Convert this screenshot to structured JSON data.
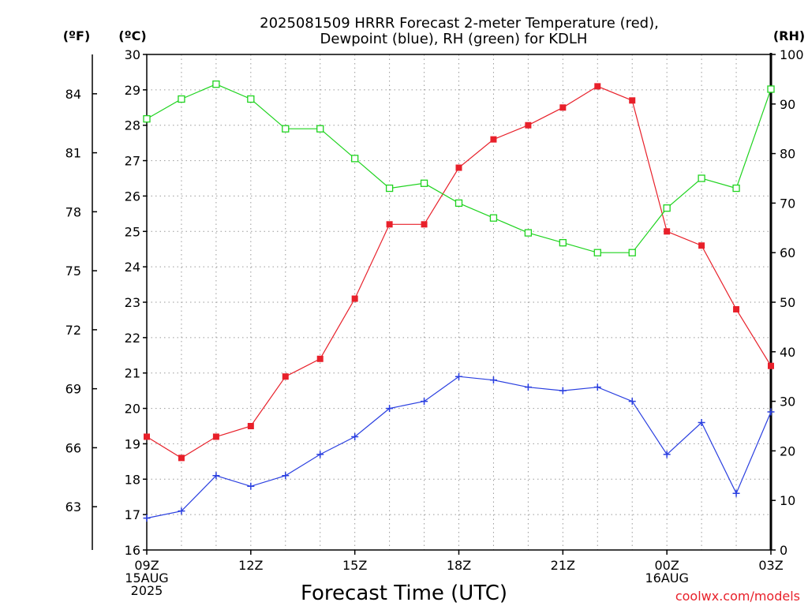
{
  "chart_data": {
    "type": "line",
    "title_lines": [
      "2025081509 HRRR Forecast 2-meter Temperature (red),",
      "Dewpoint (blue), RH (green) for KDLH"
    ],
    "xlabel": "Forecast Time (UTC)",
    "x_hours": [
      0,
      1,
      2,
      3,
      4,
      5,
      6,
      7,
      8,
      9,
      10,
      11,
      12,
      13,
      14,
      15,
      16,
      17,
      18
    ],
    "x_ticks": [
      {
        "hour": 0,
        "lines": [
          "09Z",
          "15AUG",
          "2025"
        ]
      },
      {
        "hour": 3,
        "lines": [
          "12Z"
        ]
      },
      {
        "hour": 6,
        "lines": [
          "15Z"
        ]
      },
      {
        "hour": 9,
        "lines": [
          "18Z"
        ]
      },
      {
        "hour": 12,
        "lines": [
          "21Z"
        ]
      },
      {
        "hour": 15,
        "lines": [
          "00Z",
          "16AUG"
        ]
      },
      {
        "hour": 18,
        "lines": [
          "03Z"
        ]
      }
    ],
    "x_range": [
      0,
      18
    ],
    "left_axis_f": {
      "label": "(ºF)",
      "ticks": [
        63,
        66,
        69,
        72,
        75,
        78,
        81,
        84
      ]
    },
    "left_axis_c": {
      "label": "(ºC)",
      "range": [
        16,
        30
      ],
      "ticks": [
        16,
        17,
        18,
        19,
        20,
        21,
        22,
        23,
        24,
        25,
        26,
        27,
        28,
        29,
        30
      ]
    },
    "right_axis": {
      "label": "(RH)",
      "range": [
        0,
        100
      ],
      "ticks": [
        0,
        10,
        20,
        30,
        40,
        50,
        60,
        70,
        80,
        90,
        100
      ]
    },
    "grid": true,
    "series": [
      {
        "key": "temperature",
        "axis": "c",
        "color": "#e8202a",
        "marker": "filled-square",
        "values": [
          19.2,
          18.6,
          19.2,
          19.5,
          20.9,
          21.4,
          23.1,
          25.2,
          25.2,
          26.8,
          27.6,
          28.0,
          28.5,
          29.1,
          28.7,
          25.0,
          24.6,
          22.8,
          21.2
        ]
      },
      {
        "key": "dewpoint",
        "axis": "c",
        "color": "#2a3fe0",
        "marker": "plus",
        "values": [
          16.9,
          17.1,
          18.1,
          17.8,
          18.1,
          18.7,
          19.2,
          20.0,
          20.2,
          20.9,
          20.8,
          20.6,
          20.5,
          20.6,
          20.2,
          18.7,
          19.6,
          17.6,
          19.9
        ]
      },
      {
        "key": "rh",
        "axis": "rh",
        "color": "#1fd31f",
        "marker": "open-square",
        "values": [
          87,
          91,
          94,
          91,
          85,
          85,
          79,
          73,
          74,
          70,
          67,
          64,
          62,
          60,
          60,
          69,
          75,
          73,
          93
        ]
      }
    ]
  },
  "credit": "coolwx.com/models"
}
